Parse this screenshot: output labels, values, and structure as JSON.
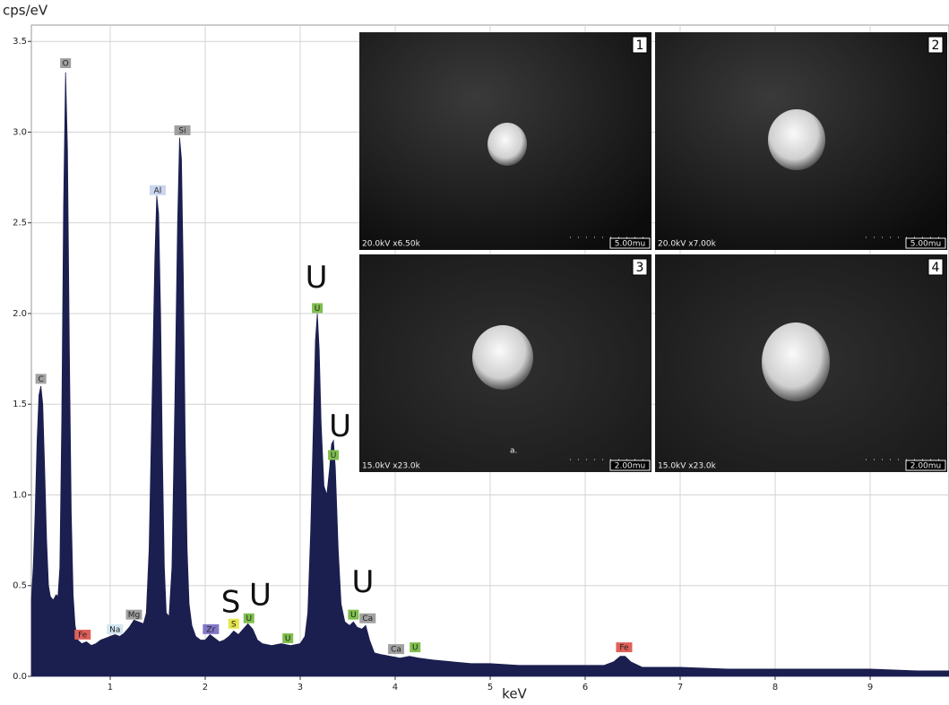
{
  "chart_data": {
    "type": "area",
    "x_label": "keV",
    "y_label": "cps/eV",
    "color": "#1b1f4f",
    "grid": true,
    "xlim": [
      0.17,
      9.83
    ],
    "ylim": [
      0,
      3.59
    ],
    "xticks": [
      1,
      2,
      3,
      4,
      5,
      6,
      7,
      8,
      9
    ],
    "yticks": [
      {
        "value": 0,
        "label": "0.0"
      },
      0.5,
      {
        "value": 1,
        "label": "1.0"
      },
      1.5,
      {
        "value": 2,
        "label": "2.0"
      },
      2.5,
      {
        "value": 3,
        "label": "3.0"
      },
      3.5
    ],
    "x": [
      0.17,
      0.19,
      0.21,
      0.23,
      0.25,
      0.27,
      0.29,
      0.31,
      0.33,
      0.35,
      0.37,
      0.4,
      0.43,
      0.45,
      0.47,
      0.49,
      0.51,
      0.53,
      0.55,
      0.57,
      0.59,
      0.61,
      0.63,
      0.66,
      0.7,
      0.75,
      0.8,
      0.85,
      0.9,
      0.95,
      1.0,
      1.05,
      1.1,
      1.15,
      1.2,
      1.25,
      1.3,
      1.35,
      1.38,
      1.41,
      1.44,
      1.47,
      1.49,
      1.51,
      1.53,
      1.55,
      1.57,
      1.59,
      1.62,
      1.65,
      1.68,
      1.71,
      1.73,
      1.75,
      1.77,
      1.79,
      1.81,
      1.83,
      1.86,
      1.9,
      1.95,
      2.0,
      2.05,
      2.1,
      2.15,
      2.2,
      2.25,
      2.3,
      2.35,
      2.4,
      2.45,
      2.5,
      2.55,
      2.6,
      2.7,
      2.8,
      2.9,
      3.0,
      3.05,
      3.08,
      3.11,
      3.14,
      3.16,
      3.18,
      3.2,
      3.22,
      3.25,
      3.28,
      3.31,
      3.33,
      3.35,
      3.37,
      3.4,
      3.43,
      3.47,
      3.52,
      3.56,
      3.6,
      3.65,
      3.69,
      3.73,
      3.78,
      3.85,
      3.95,
      4.05,
      4.15,
      4.25,
      4.4,
      4.6,
      4.8,
      5.0,
      5.3,
      5.6,
      5.9,
      6.2,
      6.3,
      6.37,
      6.42,
      6.48,
      6.6,
      7.0,
      7.5,
      8.0,
      8.5,
      9.0,
      9.5,
      9.83
    ],
    "values": [
      0.42,
      0.6,
      0.9,
      1.3,
      1.55,
      1.6,
      1.5,
      1.15,
      0.75,
      0.5,
      0.44,
      0.42,
      0.45,
      0.44,
      0.6,
      1.4,
      2.6,
      3.33,
      2.9,
      1.8,
      0.9,
      0.45,
      0.28,
      0.2,
      0.18,
      0.19,
      0.17,
      0.18,
      0.2,
      0.21,
      0.22,
      0.23,
      0.22,
      0.24,
      0.27,
      0.31,
      0.3,
      0.29,
      0.35,
      0.7,
      1.5,
      2.3,
      2.65,
      2.55,
      2.0,
      1.2,
      0.6,
      0.35,
      0.33,
      0.6,
      1.5,
      2.5,
      2.97,
      2.85,
      2.2,
      1.3,
      0.7,
      0.4,
      0.28,
      0.22,
      0.2,
      0.2,
      0.23,
      0.21,
      0.19,
      0.2,
      0.22,
      0.25,
      0.23,
      0.26,
      0.29,
      0.26,
      0.2,
      0.18,
      0.17,
      0.18,
      0.17,
      0.18,
      0.22,
      0.35,
      0.8,
      1.4,
      1.85,
      2.0,
      1.8,
      1.4,
      1.05,
      1.0,
      1.15,
      1.28,
      1.3,
      1.15,
      0.7,
      0.4,
      0.3,
      0.28,
      0.3,
      0.27,
      0.26,
      0.28,
      0.2,
      0.13,
      0.12,
      0.11,
      0.1,
      0.11,
      0.1,
      0.09,
      0.08,
      0.07,
      0.07,
      0.06,
      0.06,
      0.06,
      0.06,
      0.08,
      0.11,
      0.11,
      0.08,
      0.05,
      0.05,
      0.04,
      0.04,
      0.04,
      0.04,
      0.03,
      0.03
    ],
    "peak_labels": [
      {
        "text": "C",
        "x": 0.27,
        "y": 1.64,
        "color": "#a0a0a0"
      },
      {
        "text": "O",
        "x": 0.53,
        "y": 3.38,
        "color": "#a0a0a0"
      },
      {
        "text": "Fe",
        "x": 0.71,
        "y": 0.23,
        "color": "#e0605a"
      },
      {
        "text": "Na",
        "x": 1.05,
        "y": 0.26,
        "color": "#d4e6f2"
      },
      {
        "text": "Mg",
        "x": 1.25,
        "y": 0.34,
        "color": "#a0a0a0"
      },
      {
        "text": "Al",
        "x": 1.5,
        "y": 2.68,
        "color": "#c9d6ee"
      },
      {
        "text": "Si",
        "x": 1.76,
        "y": 3.01,
        "color": "#a0a0a0"
      },
      {
        "text": "Zr",
        "x": 2.06,
        "y": 0.26,
        "color": "#8277c6"
      },
      {
        "text": "S",
        "x": 2.3,
        "y": 0.29,
        "color": "#e6e64a"
      },
      {
        "text": "U",
        "x": 2.46,
        "y": 0.32,
        "color": "#7fbf4d"
      },
      {
        "text": "U",
        "x": 2.87,
        "y": 0.21,
        "color": "#7fbf4d"
      },
      {
        "text": "U",
        "x": 3.18,
        "y": 2.03,
        "color": "#7fbf4d"
      },
      {
        "text": "U",
        "x": 3.35,
        "y": 1.22,
        "color": "#7fbf4d"
      },
      {
        "text": "U",
        "x": 3.56,
        "y": 0.34,
        "color": "#7fbf4d"
      },
      {
        "text": "Ca",
        "x": 3.71,
        "y": 0.32,
        "color": "#a0a0a0"
      },
      {
        "text": "Ca",
        "x": 4.01,
        "y": 0.15,
        "color": "#a0a0a0"
      },
      {
        "text": "U",
        "x": 4.21,
        "y": 0.16,
        "color": "#7fbf4d"
      },
      {
        "text": "Fe",
        "x": 6.41,
        "y": 0.16,
        "color": "#e0605a"
      }
    ],
    "annotations": [
      {
        "text": "U",
        "x": 3.17,
        "y": 2.19
      },
      {
        "text": "U",
        "x": 3.42,
        "y": 1.37
      },
      {
        "text": "S",
        "x": 2.27,
        "y": 0.4
      },
      {
        "text": "U",
        "x": 2.58,
        "y": 0.44
      },
      {
        "text": "U",
        "x": 3.66,
        "y": 0.51
      }
    ]
  },
  "insets": [
    {
      "number": "1",
      "settings": "20.0kV x6.50k",
      "scale_bar": "5.00mu"
    },
    {
      "number": "2",
      "settings": "20.0kV x7.00k",
      "scale_bar": "5.00mu"
    },
    {
      "number": "3",
      "settings": "15.0kV x23.0k",
      "scale_bar": "2.00mu",
      "note": "a."
    },
    {
      "number": "4",
      "settings": "15.0kV x23.0k",
      "scale_bar": "2.00mu"
    }
  ]
}
